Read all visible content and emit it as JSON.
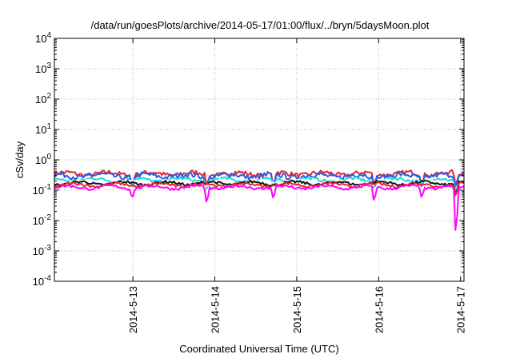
{
  "chart_data": {
    "type": "line",
    "title": "/data/run/goesPlots/archive/2014-05-17/01:00/flux/../bryn/5daysMoon.plot",
    "xlabel": "Coordinated Universal Time (UTC)",
    "ylabel": "cSv/day",
    "yscale": "log",
    "ylim": [
      0.0001,
      10000
    ],
    "y_ticks": [
      {
        "value": 0.0001,
        "base": "10",
        "exp": "-4"
      },
      {
        "value": 0.001,
        "base": "10",
        "exp": "-3"
      },
      {
        "value": 0.01,
        "base": "10",
        "exp": "-2"
      },
      {
        "value": 0.1,
        "base": "10",
        "exp": "-1"
      },
      {
        "value": 1,
        "base": "10",
        "exp": "0"
      },
      {
        "value": 10,
        "base": "10",
        "exp": "1"
      },
      {
        "value": 100,
        "base": "10",
        "exp": "2"
      },
      {
        "value": 1000,
        "base": "10",
        "exp": "3"
      },
      {
        "value": 10000,
        "base": "10",
        "exp": "4"
      }
    ],
    "xlim": [
      "2014-05-12T01:00",
      "2014-05-17T01:00"
    ],
    "x_ticks": [
      {
        "value": "2014-05-13T00:00",
        "label": "2014-5-13"
      },
      {
        "value": "2014-05-14T00:00",
        "label": "2014-5-14"
      },
      {
        "value": "2014-05-15T00:00",
        "label": "2014-5-15"
      },
      {
        "value": "2014-05-16T00:00",
        "label": "2014-5-16"
      },
      {
        "value": "2014-05-17T00:00",
        "label": "2014-5-17"
      }
    ],
    "grid": true,
    "legend": "none",
    "series": [
      {
        "color": "#e8232b",
        "base": 0.35,
        "noise": 0.18
      },
      {
        "color": "#2d5be3",
        "base": 0.3,
        "noise": 0.2
      },
      {
        "color": "#18d8e0",
        "base": 0.22,
        "noise": 0.12
      },
      {
        "color": "#ffffff",
        "base": 0.19,
        "noise": 0.1
      },
      {
        "color": "#111111",
        "base": 0.17,
        "noise": 0.1
      },
      {
        "color": "#e8232b",
        "base": 0.15,
        "noise": 0.1
      },
      {
        "color": "#ff00ff",
        "base": 0.125,
        "noise": 0.1
      }
    ],
    "dips": [
      {
        "x": "2014-05-12T23:50",
        "value": 0.05
      },
      {
        "x": "2014-05-13T21:40",
        "value": 0.03
      },
      {
        "x": "2014-05-14T17:10",
        "value": 0.045
      },
      {
        "x": "2014-05-15T22:40",
        "value": 0.035
      },
      {
        "x": "2014-05-16T12:40",
        "value": 0.05
      },
      {
        "x": "2014-05-16T22:40",
        "value": 0.0018
      }
    ]
  }
}
